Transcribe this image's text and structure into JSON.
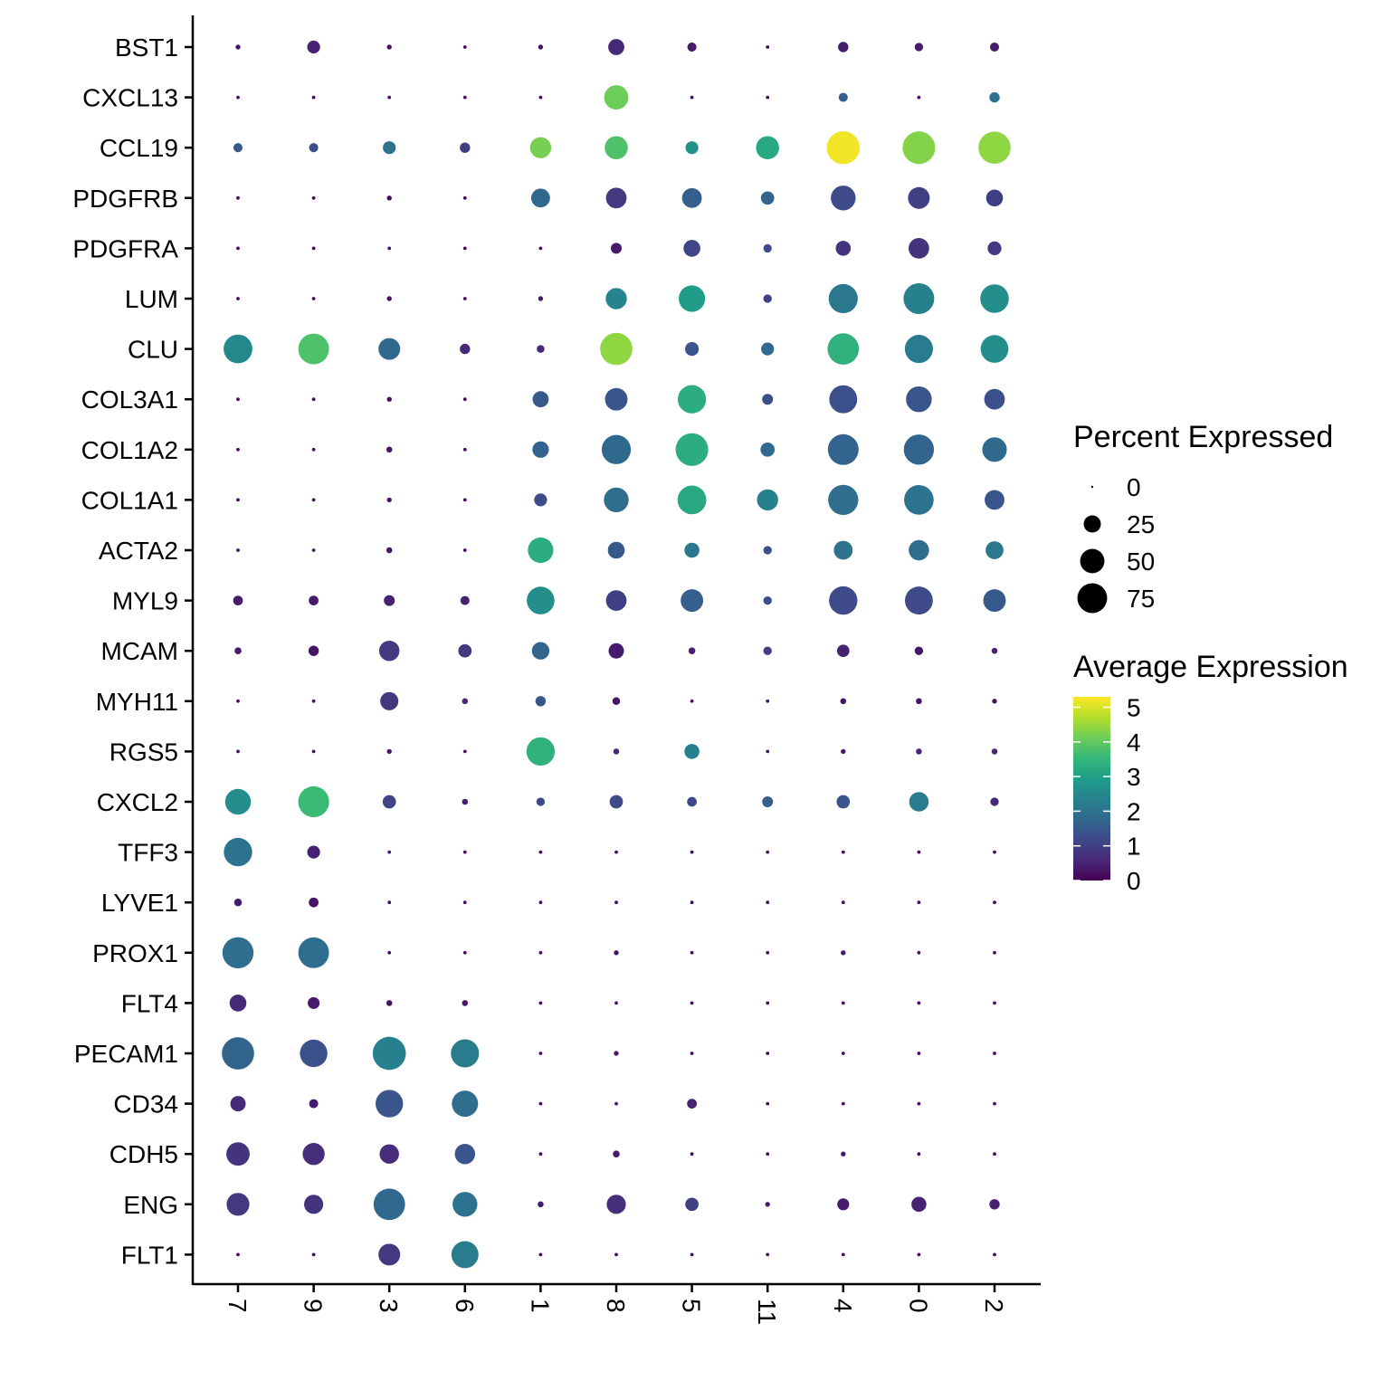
{
  "chart_data": {
    "type": "dotplot",
    "clusters": [
      "7",
      "9",
      "3",
      "6",
      "1",
      "8",
      "5",
      "11",
      "4",
      "0",
      "2"
    ],
    "genes": [
      "BST1",
      "CXCL13",
      "CCL19",
      "PDGFRB",
      "PDGFRA",
      "LUM",
      "CLU",
      "COL3A1",
      "COL1A2",
      "COL1A1",
      "ACTA2",
      "MYL9",
      "MCAM",
      "MYH11",
      "RGS5",
      "CXCL2",
      "TFF3",
      "LYVE1",
      "PROX1",
      "FLT4",
      "PECAM1",
      "CD34",
      "CDH5",
      "ENG",
      "FLT1"
    ],
    "pct_expressed": [
      [
        2,
        14,
        2,
        1,
        2,
        22,
        7,
        1,
        9,
        6,
        7
      ],
      [
        1,
        1,
        1,
        1,
        1,
        50,
        1,
        1,
        7,
        1,
        9
      ],
      [
        7,
        7,
        14,
        9,
        38,
        45,
        14,
        45,
        92,
        90,
        88
      ],
      [
        1,
        1,
        2,
        1,
        30,
        36,
        33,
        15,
        52,
        40,
        24
      ],
      [
        1,
        1,
        1,
        1,
        1,
        10,
        24,
        6,
        19,
        36,
        16
      ],
      [
        1,
        1,
        2,
        1,
        2,
        38,
        59,
        6,
        72,
        80,
        69
      ],
      [
        70,
        80,
        40,
        9,
        5,
        88,
        16,
        14,
        83,
        67,
        65
      ],
      [
        1,
        1,
        2,
        1,
        22,
        43,
        68,
        10,
        66,
        56,
        36
      ],
      [
        1,
        1,
        3,
        1,
        23,
        72,
        90,
        17,
        80,
        77,
        51
      ],
      [
        1,
        1,
        2,
        1,
        14,
        52,
        70,
        38,
        77,
        74,
        33
      ],
      [
        1,
        1,
        3,
        1,
        55,
        24,
        19,
        6,
        30,
        35,
        27
      ],
      [
        8,
        8,
        10,
        7,
        65,
        36,
        43,
        6,
        68,
        66,
        43
      ],
      [
        4,
        9,
        35,
        15,
        26,
        20,
        4,
        6,
        13,
        6,
        3
      ],
      [
        1,
        1,
        28,
        3,
        9,
        5,
        1,
        1,
        3,
        3,
        2
      ],
      [
        1,
        1,
        2,
        1,
        68,
        3,
        19,
        1,
        2,
        3,
        3
      ],
      [
        56,
        81,
        15,
        3,
        6,
        15,
        8,
        10,
        15,
        32,
        6
      ],
      [
        68,
        14,
        1,
        1,
        1,
        1,
        1,
        1,
        1,
        1,
        1
      ],
      [
        5,
        8,
        1,
        1,
        1,
        1,
        1,
        1,
        1,
        1,
        1
      ],
      [
        82,
        80,
        1,
        1,
        1,
        2,
        1,
        1,
        2,
        1,
        1
      ],
      [
        24,
        12,
        3,
        3,
        1,
        1,
        1,
        1,
        1,
        1,
        1
      ],
      [
        88,
        64,
        93,
        67,
        1,
        2,
        1,
        1,
        1,
        1,
        1
      ],
      [
        20,
        7,
        64,
        58,
        1,
        1,
        8,
        1,
        1,
        1,
        1
      ],
      [
        46,
        41,
        32,
        35,
        1,
        4,
        1,
        1,
        2,
        1,
        1
      ],
      [
        44,
        31,
        84,
        52,
        3,
        31,
        15,
        2,
        12,
        19,
        9
      ],
      [
        1,
        1,
        40,
        62,
        1,
        1,
        1,
        1,
        1,
        1,
        1
      ]
    ],
    "avg_expression": [
      [
        0.3,
        0.5,
        0.3,
        0.2,
        0.3,
        0.6,
        0.4,
        0.2,
        0.4,
        0.4,
        0.4
      ],
      [
        0.2,
        0.2,
        0.2,
        0.2,
        0.2,
        4.1,
        0.2,
        0.2,
        1.6,
        0.2,
        2.0
      ],
      [
        1.5,
        1.3,
        2.0,
        1.0,
        4.2,
        3.8,
        2.7,
        3.2,
        5.2,
        4.3,
        4.4
      ],
      [
        0.1,
        0.1,
        0.2,
        0.1,
        1.8,
        0.9,
        1.6,
        1.7,
        1.2,
        1.0,
        1.0
      ],
      [
        0.1,
        0.1,
        0.2,
        0.1,
        0.2,
        0.4,
        1.1,
        1.2,
        0.8,
        0.8,
        0.9
      ],
      [
        0.2,
        0.2,
        0.2,
        0.2,
        0.4,
        2.4,
        2.9,
        1.0,
        2.1,
        2.3,
        2.6
      ],
      [
        2.5,
        3.8,
        1.8,
        0.6,
        0.6,
        4.4,
        1.4,
        1.8,
        3.4,
        2.2,
        2.6
      ],
      [
        0.2,
        0.2,
        0.2,
        0.2,
        1.5,
        1.4,
        3.3,
        1.3,
        1.3,
        1.4,
        1.3
      ],
      [
        0.2,
        0.2,
        0.3,
        0.2,
        1.7,
        1.8,
        3.3,
        1.8,
        1.7,
        1.7,
        1.8
      ],
      [
        0.2,
        0.2,
        0.3,
        0.2,
        1.2,
        1.9,
        3.2,
        2.3,
        1.9,
        2.0,
        1.4
      ],
      [
        0.2,
        0.2,
        0.3,
        0.2,
        3.3,
        1.5,
        2.1,
        1.3,
        2.0,
        1.9,
        2.1
      ],
      [
        0.4,
        0.4,
        0.5,
        0.5,
        2.6,
        1.0,
        1.6,
        1.3,
        1.2,
        1.2,
        1.5
      ],
      [
        0.4,
        0.3,
        0.9,
        0.9,
        1.7,
        0.4,
        0.5,
        1.0,
        0.5,
        0.3,
        0.5
      ],
      [
        0.2,
        0.2,
        0.9,
        0.6,
        1.4,
        0.3,
        0.3,
        0.3,
        0.3,
        0.3,
        0.3
      ],
      [
        0.2,
        0.2,
        0.3,
        0.3,
        3.4,
        0.6,
        2.3,
        0.3,
        0.3,
        0.6,
        0.6
      ],
      [
        2.6,
        3.6,
        1.1,
        0.4,
        1.2,
        1.2,
        1.2,
        1.6,
        1.4,
        2.2,
        0.6
      ],
      [
        2.0,
        0.5,
        0.3,
        0.2,
        0.2,
        0.2,
        0.2,
        0.2,
        0.2,
        0.2,
        0.2
      ],
      [
        0.4,
        0.3,
        0.2,
        0.2,
        0.2,
        0.2,
        0.2,
        0.2,
        0.2,
        0.2,
        0.2
      ],
      [
        1.9,
        1.9,
        0.2,
        0.2,
        0.2,
        0.3,
        0.2,
        0.2,
        0.3,
        0.2,
        0.2
      ],
      [
        0.6,
        0.4,
        0.3,
        0.3,
        0.2,
        0.2,
        0.2,
        0.2,
        0.2,
        0.2,
        0.2
      ],
      [
        1.7,
        1.3,
        2.3,
        2.2,
        0.2,
        0.4,
        0.2,
        0.2,
        0.2,
        0.2,
        0.2
      ],
      [
        0.6,
        0.4,
        1.4,
        1.9,
        0.2,
        0.3,
        0.5,
        0.2,
        0.2,
        0.2,
        0.2
      ],
      [
        0.8,
        0.7,
        0.7,
        1.4,
        0.2,
        0.4,
        0.2,
        0.2,
        0.4,
        0.2,
        0.2
      ],
      [
        0.9,
        0.8,
        1.8,
        2.0,
        0.4,
        0.7,
        1.0,
        0.4,
        0.4,
        0.5,
        0.5
      ],
      [
        0.2,
        0.2,
        0.9,
        2.2,
        0.2,
        0.2,
        0.2,
        0.2,
        0.2,
        0.2,
        0.2
      ]
    ],
    "size_legend": {
      "title": "Percent Expressed",
      "breaks": [
        0,
        25,
        50,
        75
      ],
      "labels": [
        "0",
        "25",
        "50",
        "75"
      ]
    },
    "color_legend": {
      "title": "Average Expression",
      "range": [
        0,
        5.3
      ],
      "ticks": [
        5,
        4,
        3,
        2,
        1,
        0
      ],
      "tick_labels": [
        "5",
        "4",
        "3",
        "2",
        "1",
        "0"
      ],
      "colors": [
        "#440154",
        "#482878",
        "#3e4989",
        "#31688e",
        "#26828e",
        "#1f9e89",
        "#35b779",
        "#6ece58",
        "#b5de2b",
        "#fde725"
      ]
    }
  }
}
